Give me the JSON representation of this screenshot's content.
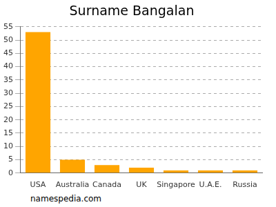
{
  "chart_data": {
    "type": "bar",
    "title": "Surname Bangalan",
    "categories": [
      "USA",
      "Australia",
      "Canada",
      "UK",
      "Singapore",
      "U.A.E.",
      "Russia"
    ],
    "values": [
      53,
      5,
      3,
      2,
      1,
      1,
      1
    ],
    "color": "#ffa500",
    "ylim": [
      0,
      55
    ],
    "yticks": [
      0,
      5,
      10,
      15,
      20,
      25,
      30,
      35,
      40,
      45,
      50,
      55
    ],
    "grid": true,
    "source": "namespedia.com"
  }
}
